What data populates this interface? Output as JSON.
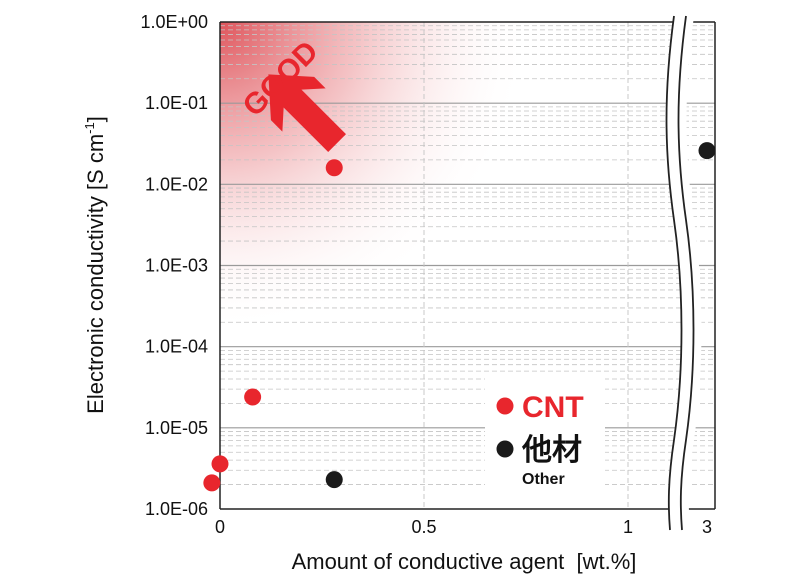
{
  "chart_data": {
    "type": "scatter",
    "xlabel": "Amount of conductive agent  [wt.%]",
    "ylabel_main": "Electronic conductivity [S cm",
    "ylabel_sup": "-1",
    "ylabel_close": "]",
    "y_scale": "log",
    "ylim": [
      1e-06,
      1
    ],
    "y_ticks": [
      "1.0E-06",
      "1.0E-05",
      "1.0E-04",
      "1.0E-03",
      "1.0E-02",
      "1.0E-01",
      "1.0E+00"
    ],
    "x_ticks": [
      "0",
      "0.5",
      "1",
      "3"
    ],
    "xlim_left_segment": [
      0,
      1.05
    ],
    "x_axis_break": "between 1 and 3",
    "annotation": "GOOD",
    "grid": true,
    "colors": {
      "cnt": "#e8262d",
      "other": "#1a1a1a",
      "gradient": "#d9363e"
    },
    "series": [
      {
        "name": "CNT",
        "color": "#e8262d",
        "points": [
          {
            "x": -0.02,
            "y": 2.1e-06
          },
          {
            "x": 0.0,
            "y": 3.6e-06
          },
          {
            "x": 0.08,
            "y": 2.4e-05
          },
          {
            "x": 0.28,
            "y": 0.016
          }
        ]
      },
      {
        "name": "他材",
        "subname": "Other",
        "color": "#1a1a1a",
        "points": [
          {
            "x": 0.28,
            "y": 2.3e-06
          },
          {
            "x": 3.0,
            "y": 0.026
          }
        ]
      }
    ],
    "legend_position": "bottom-right"
  }
}
